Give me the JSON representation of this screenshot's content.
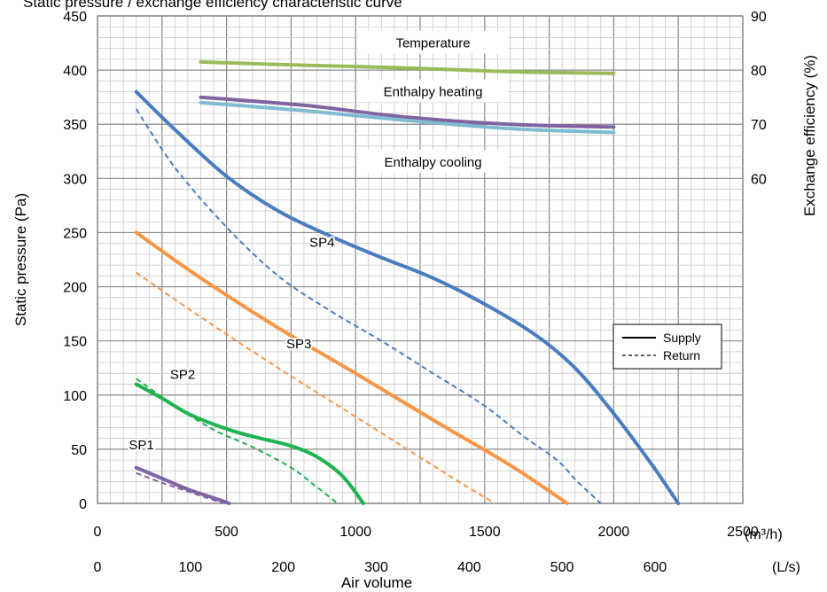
{
  "chart_data": {
    "type": "line",
    "title": "Static pressure / exchange efficiency characteristic curve",
    "xlabel": "Air volume",
    "ylabel": "Static pressure (Pa)",
    "y2label": "Exchange efficiency (%)",
    "x_unit_primary": "(m³/h)",
    "x_unit_secondary": "(L/s)",
    "xlim": [
      0,
      2500
    ],
    "ylim": [
      0,
      450
    ],
    "y2lim": [
      0,
      90
    ],
    "x_ticks": [
      0,
      500,
      1000,
      1500,
      2000,
      2500
    ],
    "x_ticks_secondary": [
      0,
      100,
      200,
      300,
      400,
      500,
      600
    ],
    "y_ticks": [
      0,
      50,
      100,
      150,
      200,
      250,
      300,
      350,
      400,
      450
    ],
    "y2_ticks": [
      60,
      70,
      80,
      90
    ],
    "grid": true,
    "legend": {
      "position": "right",
      "entries": [
        {
          "label": "Supply",
          "style": "solid"
        },
        {
          "label": "Return",
          "style": "dashed"
        }
      ]
    },
    "curve_labels": [
      {
        "text": "SP1",
        "x": 170,
        "y": 50
      },
      {
        "text": "SP2",
        "x": 330,
        "y": 115
      },
      {
        "text": "SP3",
        "x": 780,
        "y": 143
      },
      {
        "text": "SP4",
        "x": 870,
        "y": 237
      }
    ],
    "efficiency_labels": [
      {
        "text": "Temperature",
        "x": 1300,
        "y2": 85
      },
      {
        "text": "Enthalpy heating",
        "x": 1300,
        "y2": 76
      },
      {
        "text": "Enthalpy cooling",
        "x": 1300,
        "y2": 63
      }
    ],
    "series": [
      {
        "name": "SP4",
        "kind": "supply",
        "axis": "y",
        "color": "#4a7dbf",
        "x": [
          150,
          300,
          500,
          700,
          900,
          1100,
          1300,
          1500,
          1700,
          1850,
          2000,
          2150,
          2250
        ],
        "y": [
          380,
          345,
          302,
          270,
          247,
          227,
          208,
          184,
          155,
          125,
          83,
          35,
          0
        ]
      },
      {
        "name": "SP4",
        "kind": "return",
        "axis": "y",
        "color": "#4a7dbf",
        "x": [
          150,
          300,
          500,
          700,
          900,
          1100,
          1300,
          1500,
          1650,
          1780,
          1860,
          1950
        ],
        "y": [
          364,
          310,
          255,
          210,
          178,
          150,
          120,
          90,
          62,
          40,
          20,
          0
        ]
      },
      {
        "name": "SP3",
        "kind": "supply",
        "axis": "y",
        "color": "#f79646",
        "x": [
          150,
          400,
          700,
          1000,
          1300,
          1600,
          1820
        ],
        "y": [
          250,
          208,
          162,
          120,
          77,
          35,
          0
        ]
      },
      {
        "name": "SP3",
        "kind": "return",
        "axis": "y",
        "color": "#f79646",
        "x": [
          150,
          400,
          700,
          1000,
          1200,
          1400,
          1540
        ],
        "y": [
          213,
          172,
          125,
          80,
          50,
          20,
          0
        ]
      },
      {
        "name": "SP2",
        "kind": "supply",
        "axis": "y",
        "color": "#1db34f",
        "x": [
          150,
          250,
          350,
          450,
          550,
          650,
          750,
          850,
          950,
          1030
        ],
        "y": [
          110,
          97,
          83,
          73,
          65,
          59,
          53,
          43,
          25,
          0
        ]
      },
      {
        "name": "SP2",
        "kind": "return",
        "axis": "y",
        "color": "#1db34f",
        "x": [
          150,
          300,
          450,
          600,
          750,
          850,
          930
        ],
        "y": [
          115,
          90,
          68,
          52,
          33,
          15,
          0
        ]
      },
      {
        "name": "SP1",
        "kind": "supply",
        "axis": "y",
        "color": "#8064a2",
        "x": [
          150,
          250,
          350,
          450,
          510
        ],
        "y": [
          33,
          23,
          13,
          5,
          0
        ]
      },
      {
        "name": "SP1",
        "kind": "return",
        "axis": "y",
        "color": "#8064a2",
        "x": [
          150,
          250,
          350,
          450,
          500
        ],
        "y": [
          28,
          19,
          11,
          3,
          0
        ]
      },
      {
        "name": "Temperature",
        "kind": "efficiency",
        "axis": "y2",
        "color": "#9bbb59",
        "x": [
          400,
          800,
          1200,
          1600,
          2000
        ],
        "y": [
          81.5,
          80.9,
          80.4,
          79.7,
          79.4
        ]
      },
      {
        "name": "Enthalpy heating",
        "kind": "efficiency",
        "axis": "y2",
        "color": "#8064a2",
        "x": [
          400,
          800,
          1200,
          1600,
          2000
        ],
        "y": [
          75,
          73.5,
          71.3,
          70,
          69.5
        ]
      },
      {
        "name": "Enthalpy cooling",
        "kind": "efficiency",
        "axis": "y2",
        "color": "#7fbcd2",
        "x": [
          400,
          800,
          1200,
          1600,
          2000
        ],
        "y": [
          74,
          72.5,
          70.7,
          69.2,
          68.5
        ]
      }
    ]
  }
}
